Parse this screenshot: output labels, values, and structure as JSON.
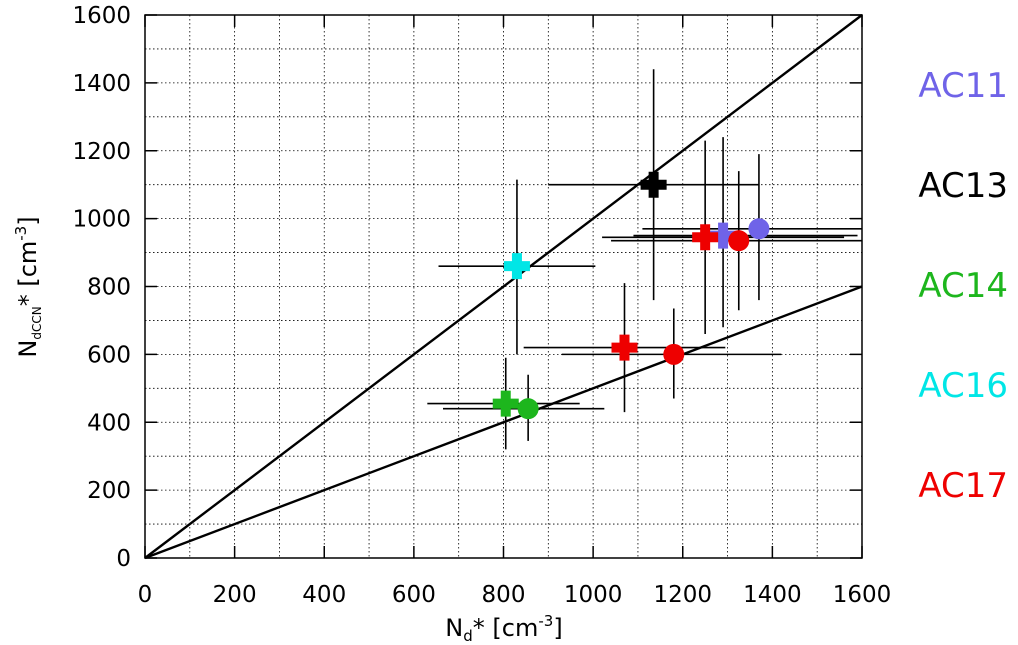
{
  "chart_data": {
    "type": "scatter",
    "title": "",
    "xlabel": {
      "main": "N",
      "sub": "d",
      "rest": "* [cm",
      "sup": "-3",
      "close": "]"
    },
    "ylabel": {
      "main": "N",
      "sub": "dCCN",
      "rest": "* [cm",
      "sup": "-3",
      "close": "]"
    },
    "xlim": [
      0,
      1600
    ],
    "ylim": [
      0,
      1600
    ],
    "xticks": [
      "0",
      "200",
      "400",
      "600",
      "800",
      "1000",
      "1200",
      "1400",
      "1600"
    ],
    "yticks": [
      "0",
      "200",
      "400",
      "600",
      "800",
      "1000",
      "1200",
      "1400",
      "1600"
    ],
    "grid": true,
    "legend_placement": "right",
    "reference_lines": [
      {
        "slope": 1.0
      },
      {
        "slope": 0.5
      }
    ],
    "marker_types": {
      "plus": "cross",
      "circle": "filled circle"
    },
    "series": [
      {
        "name": "AC11",
        "color": "#6f63e8",
        "points": [
          {
            "marker": "plus",
            "x": 1290,
            "y": 950,
            "xerr": [
              1090,
              1590
            ],
            "yerr": [
              680,
              1240
            ]
          },
          {
            "marker": "circle",
            "x": 1370,
            "y": 970,
            "xerr": [
              1110,
              1600
            ],
            "yerr": [
              760,
              1190
            ]
          }
        ]
      },
      {
        "name": "AC13",
        "color": "#000000",
        "points": [
          {
            "marker": "plus",
            "x": 1135,
            "y": 1100,
            "xerr": [
              900,
              1370
            ],
            "yerr": [
              760,
              1440
            ]
          }
        ]
      },
      {
        "name": "AC14",
        "color": "#1db61d",
        "points": [
          {
            "marker": "plus",
            "x": 805,
            "y": 455,
            "xerr": [
              630,
              970
            ],
            "yerr": [
              320,
              590
            ]
          },
          {
            "marker": "circle",
            "x": 855,
            "y": 440,
            "xerr": [
              665,
              1025
            ],
            "yerr": [
              345,
              540
            ]
          }
        ]
      },
      {
        "name": "AC16",
        "color": "#00e6e6",
        "points": [
          {
            "marker": "plus",
            "x": 830,
            "y": 860,
            "xerr": [
              655,
              1005
            ],
            "yerr": [
              600,
              1115
            ]
          }
        ]
      },
      {
        "name": "AC17",
        "color": "#ee0000",
        "points": [
          {
            "marker": "plus",
            "x": 1070,
            "y": 620,
            "xerr": [
              845,
              1295
            ],
            "yerr": [
              430,
              810
            ]
          },
          {
            "marker": "circle",
            "x": 1180,
            "y": 600,
            "xerr": [
              930,
              1420
            ],
            "yerr": [
              470,
              735
            ]
          },
          {
            "marker": "plus",
            "x": 1250,
            "y": 945,
            "xerr": [
              1020,
              1560
            ],
            "yerr": [
              660,
              1230
            ]
          },
          {
            "marker": "circle",
            "x": 1325,
            "y": 935,
            "xerr": [
              1040,
              1600
            ],
            "yerr": [
              730,
              1140
            ]
          }
        ]
      }
    ]
  }
}
